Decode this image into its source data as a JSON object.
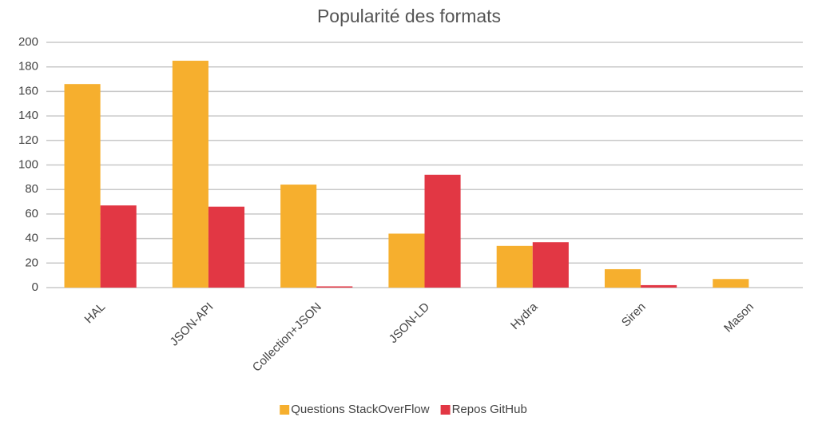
{
  "chart_data": {
    "type": "bar",
    "title": "Popularité des formats",
    "categories": [
      "HAL",
      "JSON-API",
      "Collection+JSON",
      "JSON-LD",
      "Hydra",
      "Siren",
      "Mason"
    ],
    "series": [
      {
        "name": "Questions StackOverFlow",
        "color": "#f6af2e",
        "values": [
          166,
          185,
          84,
          44,
          34,
          15,
          7
        ]
      },
      {
        "name": "Repos GitHub",
        "color": "#e23744",
        "values": [
          67,
          66,
          1,
          92,
          37,
          2,
          0
        ]
      }
    ],
    "ylim": [
      0,
      200
    ],
    "yticks": [
      0,
      20,
      40,
      60,
      80,
      100,
      120,
      140,
      160,
      180,
      200
    ],
    "grid": true,
    "legend": "bottom"
  }
}
